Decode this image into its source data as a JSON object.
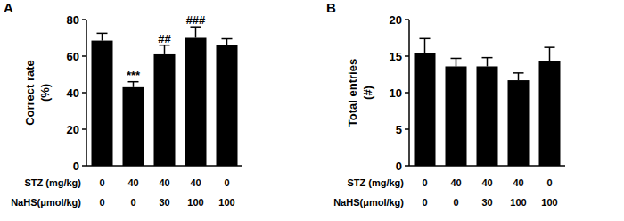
{
  "chart_data": [
    {
      "type": "bar",
      "panel": "A",
      "ylabel_lines": [
        "Correct rate",
        "(%)"
      ],
      "values": [
        68.5,
        43,
        61,
        70,
        66
      ],
      "errors": [
        4,
        3,
        5,
        6,
        3.5
      ],
      "annotations": [
        null,
        "***",
        "##",
        "###",
        null
      ],
      "x_rows": [
        {
          "label": "STZ (mg/kg)",
          "values": [
            0,
            40,
            40,
            40,
            0
          ]
        },
        {
          "label": "NaHS(μmol/kg)",
          "values": [
            0,
            0,
            30,
            100,
            100
          ]
        }
      ],
      "color": "#000000",
      "ylim": [
        0,
        80
      ],
      "yticks": [
        0,
        20,
        40,
        60,
        80
      ],
      "grid": false
    },
    {
      "type": "bar",
      "panel": "B",
      "ylabel_lines": [
        "Total entries",
        "(#)"
      ],
      "values": [
        15.4,
        13.6,
        13.6,
        11.7,
        14.3
      ],
      "errors": [
        2,
        1.1,
        1.2,
        1.0,
        1.9
      ],
      "annotations": [
        null,
        null,
        null,
        null,
        null
      ],
      "x_rows": [
        {
          "label": "STZ (mg/kg)",
          "values": [
            0,
            40,
            40,
            40,
            0
          ]
        },
        {
          "label": "NaHS(μmol/kg)",
          "values": [
            0,
            0,
            30,
            100,
            100
          ]
        }
      ],
      "color": "#000000",
      "ylim": [
        0,
        20
      ],
      "yticks": [
        0,
        5,
        10,
        15,
        20
      ],
      "grid": false
    }
  ]
}
